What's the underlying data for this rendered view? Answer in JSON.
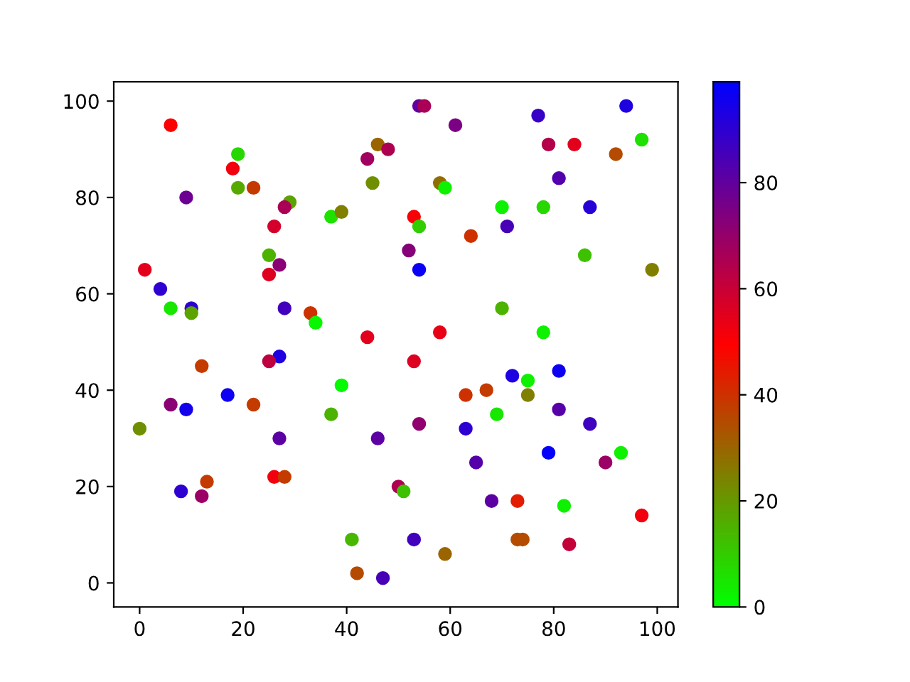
{
  "chart_data": {
    "type": "scatter",
    "marker": "circle",
    "x": [
      6,
      19,
      18,
      19,
      22,
      9,
      29,
      28,
      26,
      37,
      39,
      25,
      27,
      25,
      1,
      4,
      6,
      10,
      10,
      28,
      33,
      34,
      44,
      44,
      46,
      48,
      45,
      54,
      55,
      61,
      77,
      94,
      79,
      84,
      97,
      92,
      81,
      58,
      59,
      70,
      78,
      87,
      53,
      54,
      71,
      64,
      52,
      54,
      86,
      99,
      70,
      58,
      78,
      27,
      25,
      12,
      39,
      17,
      22,
      6,
      9,
      37,
      0,
      27,
      46,
      13,
      8,
      12,
      26,
      28,
      41,
      42,
      47,
      53,
      72,
      75,
      81,
      63,
      67,
      75,
      69,
      81,
      54,
      63,
      87,
      79,
      93,
      65,
      90,
      50,
      51,
      68,
      73,
      82,
      97,
      53,
      73,
      74,
      83,
      59
    ],
    "values": [
      95,
      89,
      86,
      82,
      82,
      80,
      79,
      78,
      74,
      76,
      77,
      68,
      66,
      64,
      65,
      61,
      57,
      57,
      56,
      57,
      56,
      54,
      51,
      88,
      91,
      90,
      83,
      99,
      99,
      95,
      97,
      99,
      91,
      91,
      92,
      89,
      84,
      83,
      82,
      78,
      78,
      78,
      76,
      74,
      74,
      72,
      69,
      65,
      68,
      65,
      57,
      52,
      52,
      47,
      46,
      45,
      41,
      39,
      37,
      37,
      36,
      35,
      32,
      30,
      30,
      21,
      19,
      18,
      22,
      22,
      9,
      2,
      1,
      46,
      43,
      42,
      44,
      39,
      40,
      39,
      35,
      36,
      33,
      32,
      33,
      27,
      27,
      25,
      25,
      20,
      19,
      17,
      17,
      16,
      14,
      9,
      9,
      9,
      8,
      6
    ],
    "cvalues": [
      50,
      8,
      52,
      17,
      38,
      78,
      18,
      66,
      58,
      6,
      25,
      15,
      72,
      56,
      55,
      90,
      5,
      90,
      18,
      86,
      40,
      2,
      55,
      68,
      30,
      65,
      22,
      80,
      66,
      75,
      88,
      93,
      64,
      55,
      6,
      35,
      83,
      28,
      3,
      3,
      8,
      91,
      51,
      10,
      85,
      40,
      73,
      97,
      12,
      25,
      15,
      54,
      3,
      93,
      62,
      38,
      1,
      96,
      38,
      72,
      95,
      15,
      22,
      81,
      81,
      38,
      90,
      69,
      52,
      38,
      14,
      35,
      85,
      56,
      93,
      3,
      96,
      40,
      38,
      25,
      5,
      82,
      71,
      90,
      87,
      98,
      3,
      82,
      69,
      65,
      12,
      81,
      44,
      3,
      52,
      86,
      35,
      35,
      61,
      30
    ],
    "clim": [
      0,
      99
    ],
    "cticks": [
      0,
      20,
      40,
      60,
      80
    ],
    "xlim": [
      -5,
      104
    ],
    "ylim": [
      -5,
      104
    ],
    "xticks": [
      0,
      20,
      40,
      60,
      80,
      100
    ],
    "yticks": [
      0,
      20,
      40,
      60,
      80,
      100
    ]
  }
}
